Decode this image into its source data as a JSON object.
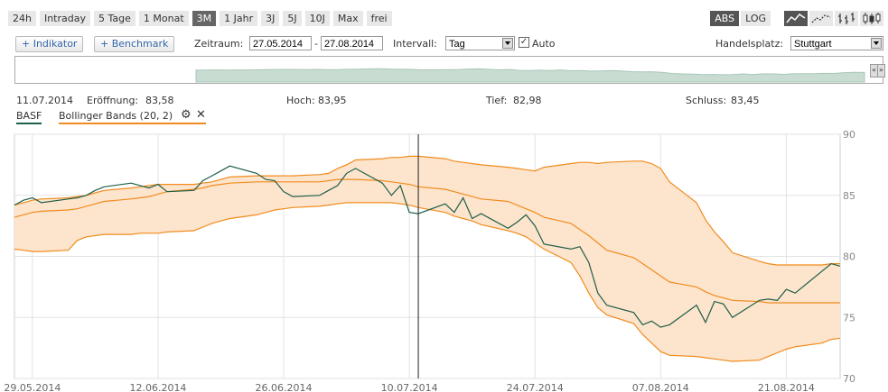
{
  "ranges": [
    "24h",
    "Intraday",
    "5 Tage",
    "1 Monat",
    "3M",
    "1 Jahr",
    "3J",
    "5J",
    "10J",
    "Max",
    "frei"
  ],
  "active_range": "3M",
  "scale": {
    "abs": "ABS",
    "log": "LOG",
    "active": "ABS"
  },
  "chart_types": [
    "line-chart-icon",
    "dotted-line-chart-icon",
    "ohlc-chart-icon",
    "candlestick-chart-icon"
  ],
  "toolbar": {
    "indikator_label": "+ Indikator",
    "benchmark_label": "+ Benchmark",
    "zeitraum_label": "Zeitraum:",
    "date_from": "27.05.2014",
    "date_sep": "-",
    "date_to": "27.08.2014",
    "intervall_label": "Intervall:",
    "intervall_value": "Tag",
    "auto_label": "Auto",
    "handelsplatz_label": "Handelsplatz:",
    "handelsplatz_value": "Stuttgart"
  },
  "navigator": {
    "left_handle": "«",
    "right_handle": "»"
  },
  "info": {
    "date": "11.07.2014",
    "open_label": "Eröffnung:",
    "open": "83,58",
    "high_label": "Hoch:",
    "high": "83,95",
    "low_label": "Tief:",
    "low": "82,98",
    "close_label": "Schluss:",
    "close": "83,45"
  },
  "legend": {
    "series1": "BASF",
    "series2": "Bollinger Bands (20, 2)"
  },
  "colors": {
    "price": "#1f5e48",
    "band": "#f08c1e",
    "fill": "#fde4cc",
    "grid": "#e2e2e2"
  },
  "chart_data": {
    "type": "line",
    "ylim": [
      70,
      90
    ],
    "yticks": [
      70,
      75,
      80,
      85,
      90
    ],
    "xlim": [
      "2014-05-27",
      "2014-08-27"
    ],
    "xticks": [
      {
        "date": "2014-05-29",
        "label": "29.05.2014"
      },
      {
        "date": "2014-06-12",
        "label": "12.06.2014"
      },
      {
        "date": "2014-06-26",
        "label": "26.06.2014"
      },
      {
        "date": "2014-07-10",
        "label": "10.07.2014"
      },
      {
        "date": "2014-07-24",
        "label": "24.07.2014"
      },
      {
        "date": "2014-08-07",
        "label": "07.08.2014"
      },
      {
        "date": "2014-08-21",
        "label": "21.08.2014"
      }
    ],
    "crosshair_date": "2014-07-11",
    "x": [
      "2014-05-27",
      "2014-05-28",
      "2014-05-29",
      "2014-05-30",
      "2014-06-02",
      "2014-06-03",
      "2014-06-04",
      "2014-06-05",
      "2014-06-06",
      "2014-06-09",
      "2014-06-10",
      "2014-06-11",
      "2014-06-12",
      "2014-06-13",
      "2014-06-16",
      "2014-06-17",
      "2014-06-18",
      "2014-06-19",
      "2014-06-20",
      "2014-06-23",
      "2014-06-24",
      "2014-06-25",
      "2014-06-26",
      "2014-06-27",
      "2014-06-30",
      "2014-07-01",
      "2014-07-02",
      "2014-07-03",
      "2014-07-04",
      "2014-07-07",
      "2014-07-08",
      "2014-07-09",
      "2014-07-10",
      "2014-07-11",
      "2014-07-14",
      "2014-07-15",
      "2014-07-16",
      "2014-07-17",
      "2014-07-18",
      "2014-07-21",
      "2014-07-22",
      "2014-07-23",
      "2014-07-24",
      "2014-07-25",
      "2014-07-28",
      "2014-07-29",
      "2014-07-30",
      "2014-07-31",
      "2014-08-01",
      "2014-08-04",
      "2014-08-05",
      "2014-08-06",
      "2014-08-07",
      "2014-08-08",
      "2014-08-11",
      "2014-08-12",
      "2014-08-13",
      "2014-08-14",
      "2014-08-15",
      "2014-08-18",
      "2014-08-19",
      "2014-08-20",
      "2014-08-21",
      "2014-08-22",
      "2014-08-25",
      "2014-08-26",
      "2014-08-27"
    ],
    "series": [
      {
        "name": "BASF",
        "values": [
          84.2,
          84.6,
          84.8,
          84.4,
          84.7,
          84.8,
          85.0,
          85.4,
          85.7,
          86.0,
          85.8,
          85.6,
          85.9,
          85.3,
          85.4,
          86.2,
          86.6,
          87.0,
          87.4,
          86.8,
          86.3,
          86.2,
          85.3,
          84.9,
          85.0,
          85.4,
          85.8,
          86.8,
          87.2,
          86.0,
          85.0,
          85.8,
          83.6,
          83.5,
          84.3,
          83.6,
          84.8,
          83.1,
          83.5,
          82.3,
          82.8,
          83.4,
          82.5,
          81.0,
          80.6,
          80.8,
          79.5,
          77.0,
          76.0,
          75.4,
          74.4,
          74.7,
          74.2,
          74.4,
          76.0,
          74.6,
          76.3,
          76.1,
          75.0,
          76.4,
          76.5,
          76.4,
          77.3,
          77.0,
          78.8,
          79.4,
          79.2
        ]
      },
      {
        "name": "Bollinger Bands (20, 2)",
        "values": [
          84.2,
          84.4,
          84.6,
          84.7,
          84.8,
          84.9,
          85.0,
          85.2,
          85.4,
          85.6,
          85.7,
          85.8,
          85.9,
          85.9,
          85.9,
          86.0,
          86.1,
          86.3,
          86.5,
          86.6,
          86.6,
          86.6,
          86.6,
          86.6,
          86.7,
          86.8,
          87.2,
          87.5,
          87.9,
          88.0,
          88.1,
          88.1,
          88.2,
          88.2,
          88.0,
          87.8,
          87.7,
          87.6,
          87.5,
          87.3,
          87.2,
          87.1,
          87.0,
          87.3,
          87.6,
          87.7,
          87.7,
          87.6,
          87.7,
          87.8,
          87.8,
          87.6,
          87.2,
          86.1,
          84.4,
          83.0,
          82.0,
          81.2,
          80.3,
          79.6,
          79.4,
          79.3,
          79.3,
          79.3,
          79.3,
          79.4,
          79.4
        ]
      },
      {
        "name": "Bollinger Bands (20, 2)",
        "values": [
          83.2,
          83.4,
          83.6,
          83.7,
          83.8,
          83.9,
          84.1,
          84.3,
          84.5,
          84.7,
          84.8,
          84.9,
          85.1,
          85.3,
          85.5,
          85.6,
          85.8,
          85.9,
          86.0,
          86.1,
          86.1,
          86.1,
          86.1,
          86.1,
          86.1,
          86.2,
          86.3,
          86.3,
          86.3,
          86.2,
          86.1,
          86.0,
          85.9,
          85.7,
          85.5,
          85.3,
          85.1,
          84.9,
          84.7,
          84.5,
          84.2,
          83.9,
          83.6,
          83.2,
          82.7,
          82.2,
          81.7,
          81.1,
          80.5,
          79.9,
          79.4,
          78.9,
          78.4,
          77.9,
          77.5,
          77.1,
          76.8,
          76.6,
          76.4,
          76.3,
          76.2,
          76.2,
          76.2,
          76.2,
          76.2,
          76.2,
          76.2
        ]
      },
      {
        "name": "Bollinger Bands (20, 2)",
        "values": [
          80.6,
          80.5,
          80.4,
          80.4,
          80.5,
          81.3,
          81.6,
          81.7,
          81.8,
          81.8,
          81.9,
          81.9,
          81.9,
          82.0,
          82.1,
          82.4,
          82.7,
          82.9,
          83.1,
          83.4,
          83.6,
          83.8,
          83.9,
          84.0,
          84.1,
          84.2,
          84.3,
          84.4,
          84.4,
          84.4,
          84.4,
          84.3,
          84.2,
          84.0,
          83.6,
          83.3,
          83.1,
          82.9,
          82.6,
          82.1,
          81.9,
          81.6,
          81.1,
          80.6,
          79.5,
          78.4,
          77.0,
          75.8,
          75.2,
          74.5,
          73.6,
          72.9,
          72.2,
          71.9,
          71.8,
          71.7,
          71.6,
          71.5,
          71.4,
          71.5,
          71.8,
          72.1,
          72.4,
          72.6,
          72.9,
          73.2,
          73.3
        ]
      }
    ]
  }
}
